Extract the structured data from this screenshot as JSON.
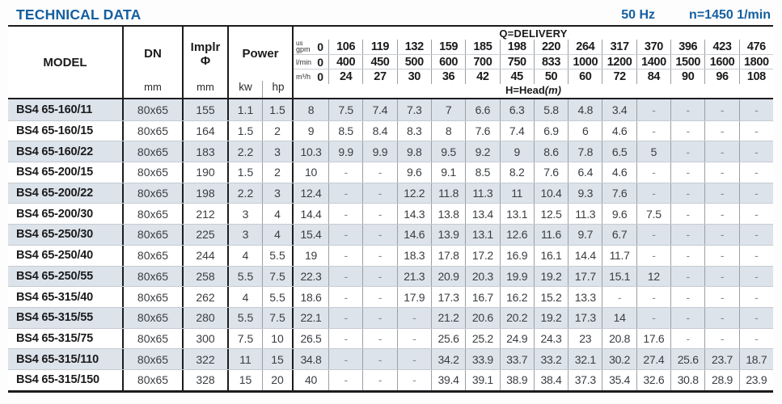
{
  "header_bar": {
    "title": "TECHNICAL DATA",
    "frequency": "50 Hz",
    "rotation_speed": "n=1450 1/min"
  },
  "table": {
    "columns": {
      "model_label": "MODEL",
      "dn_label": "DN",
      "dn_unit": "mm",
      "impeller_label": "Implr",
      "impeller_symbol": "Φ",
      "impeller_unit": "mm",
      "power_label": "Power",
      "power_unit_kw": "kw",
      "power_unit_hp": "hp"
    },
    "q_header": {
      "title": "Q=DELIVERY",
      "head_label": "H=Head",
      "head_unit": "(m)",
      "unit_rows": [
        {
          "label_top": "us",
          "label": "gpm",
          "values": [
            "0",
            "106",
            "119",
            "132",
            "159",
            "185",
            "198",
            "220",
            "264",
            "317",
            "370",
            "396",
            "423",
            "476"
          ]
        },
        {
          "label": "l/min",
          "values": [
            "0",
            "400",
            "450",
            "500",
            "600",
            "700",
            "750",
            "833",
            "1000",
            "1200",
            "1400",
            "1500",
            "1600",
            "1800"
          ]
        },
        {
          "label": "m³/h",
          "values": [
            "0",
            "24",
            "27",
            "30",
            "36",
            "42",
            "45",
            "50",
            "60",
            "72",
            "84",
            "90",
            "96",
            "108"
          ]
        }
      ]
    },
    "rows": [
      {
        "model": "BS4 65-160/11",
        "dn": "80x65",
        "impeller": "155",
        "kw": "1.1",
        "hp": "1.5",
        "head": [
          "8",
          "7.5",
          "7.4",
          "7.3",
          "7",
          "6.6",
          "6.3",
          "5.8",
          "4.8",
          "3.4",
          "-",
          "-",
          "-",
          "-"
        ]
      },
      {
        "model": "BS4 65-160/15",
        "dn": "80x65",
        "impeller": "164",
        "kw": "1.5",
        "hp": "2",
        "head": [
          "9",
          "8.5",
          "8.4",
          "8.3",
          "8",
          "7.6",
          "7.4",
          "6.9",
          "6",
          "4.6",
          "-",
          "-",
          "-",
          "-"
        ]
      },
      {
        "model": "BS4 65-160/22",
        "dn": "80x65",
        "impeller": "183",
        "kw": "2.2",
        "hp": "3",
        "head": [
          "10.3",
          "9.9",
          "9.9",
          "9.8",
          "9.5",
          "9.2",
          "9",
          "8.6",
          "7.8",
          "6.5",
          "5",
          "-",
          "-",
          "-"
        ]
      },
      {
        "model": "BS4 65-200/15",
        "dn": "80x65",
        "impeller": "190",
        "kw": "1.5",
        "hp": "2",
        "head": [
          "10",
          "-",
          "-",
          "9.6",
          "9.1",
          "8.5",
          "8.2",
          "7.6",
          "6.4",
          "4.6",
          "-",
          "-",
          "-",
          "-"
        ]
      },
      {
        "model": "BS4 65-200/22",
        "dn": "80x65",
        "impeller": "198",
        "kw": "2.2",
        "hp": "3",
        "head": [
          "12.4",
          "-",
          "-",
          "12.2",
          "11.8",
          "11.3",
          "11",
          "10.4",
          "9.3",
          "7.6",
          "-",
          "-",
          "-",
          "-"
        ]
      },
      {
        "model": "BS4 65-200/30",
        "dn": "80x65",
        "impeller": "212",
        "kw": "3",
        "hp": "4",
        "head": [
          "14.4",
          "-",
          "-",
          "14.3",
          "13.8",
          "13.4",
          "13.1",
          "12.5",
          "11.3",
          "9.6",
          "7.5",
          "-",
          "-",
          "-"
        ]
      },
      {
        "model": "BS4 65-250/30",
        "dn": "80x65",
        "impeller": "225",
        "kw": "3",
        "hp": "4",
        "head": [
          "15.4",
          "-",
          "-",
          "14.6",
          "13.9",
          "13.1",
          "12.6",
          "11.6",
          "9.7",
          "6.7",
          "-",
          "-",
          "-",
          "-"
        ]
      },
      {
        "model": "BS4 65-250/40",
        "dn": "80x65",
        "impeller": "244",
        "kw": "4",
        "hp": "5.5",
        "head": [
          "19",
          "-",
          "-",
          "18.3",
          "17.8",
          "17.2",
          "16.9",
          "16.1",
          "14.4",
          "11.7",
          "-",
          "-",
          "-",
          "-"
        ]
      },
      {
        "model": "BS4 65-250/55",
        "dn": "80x65",
        "impeller": "258",
        "kw": "5.5",
        "hp": "7.5",
        "head": [
          "22.3",
          "-",
          "-",
          "21.3",
          "20.9",
          "20.3",
          "19.9",
          "19.2",
          "17.7",
          "15.1",
          "12",
          "-",
          "-",
          "-"
        ]
      },
      {
        "model": "BS4 65-315/40",
        "dn": "80x65",
        "impeller": "262",
        "kw": "4",
        "hp": "5.5",
        "head": [
          "18.6",
          "-",
          "-",
          "17.9",
          "17.3",
          "16.7",
          "16.2",
          "15.2",
          "13.3",
          "-",
          "-",
          "-",
          "-",
          "-"
        ]
      },
      {
        "model": "BS4 65-315/55",
        "dn": "80x65",
        "impeller": "280",
        "kw": "5.5",
        "hp": "7.5",
        "head": [
          "22.1",
          "-",
          "-",
          "-",
          "21.2",
          "20.6",
          "20.2",
          "19.2",
          "17.3",
          "14",
          "-",
          "-",
          "-",
          "-"
        ]
      },
      {
        "model": "BS4 65-315/75",
        "dn": "80x65",
        "impeller": "300",
        "kw": "7.5",
        "hp": "10",
        "head": [
          "26.5",
          "-",
          "-",
          "-",
          "25.6",
          "25.2",
          "24.9",
          "24.3",
          "23",
          "20.8",
          "17.6",
          "-",
          "-",
          "-"
        ]
      },
      {
        "model": "BS4 65-315/110",
        "dn": "80x65",
        "impeller": "322",
        "kw": "11",
        "hp": "15",
        "head": [
          "34.8",
          "-",
          "-",
          "-",
          "34.2",
          "33.9",
          "33.7",
          "33.2",
          "32.1",
          "30.2",
          "27.4",
          "25.6",
          "23.7",
          "18.7"
        ]
      },
      {
        "model": "BS4 65-315/150",
        "dn": "80x65",
        "impeller": "328",
        "kw": "15",
        "hp": "20",
        "head": [
          "40",
          "-",
          "-",
          "-",
          "39.4",
          "39.1",
          "38.9",
          "38.4",
          "37.3",
          "35.4",
          "32.6",
          "30.8",
          "28.9",
          "23.9"
        ]
      }
    ]
  },
  "colors": {
    "accent_blue": "#155fa0",
    "row_stripe": "#dce3ea"
  }
}
